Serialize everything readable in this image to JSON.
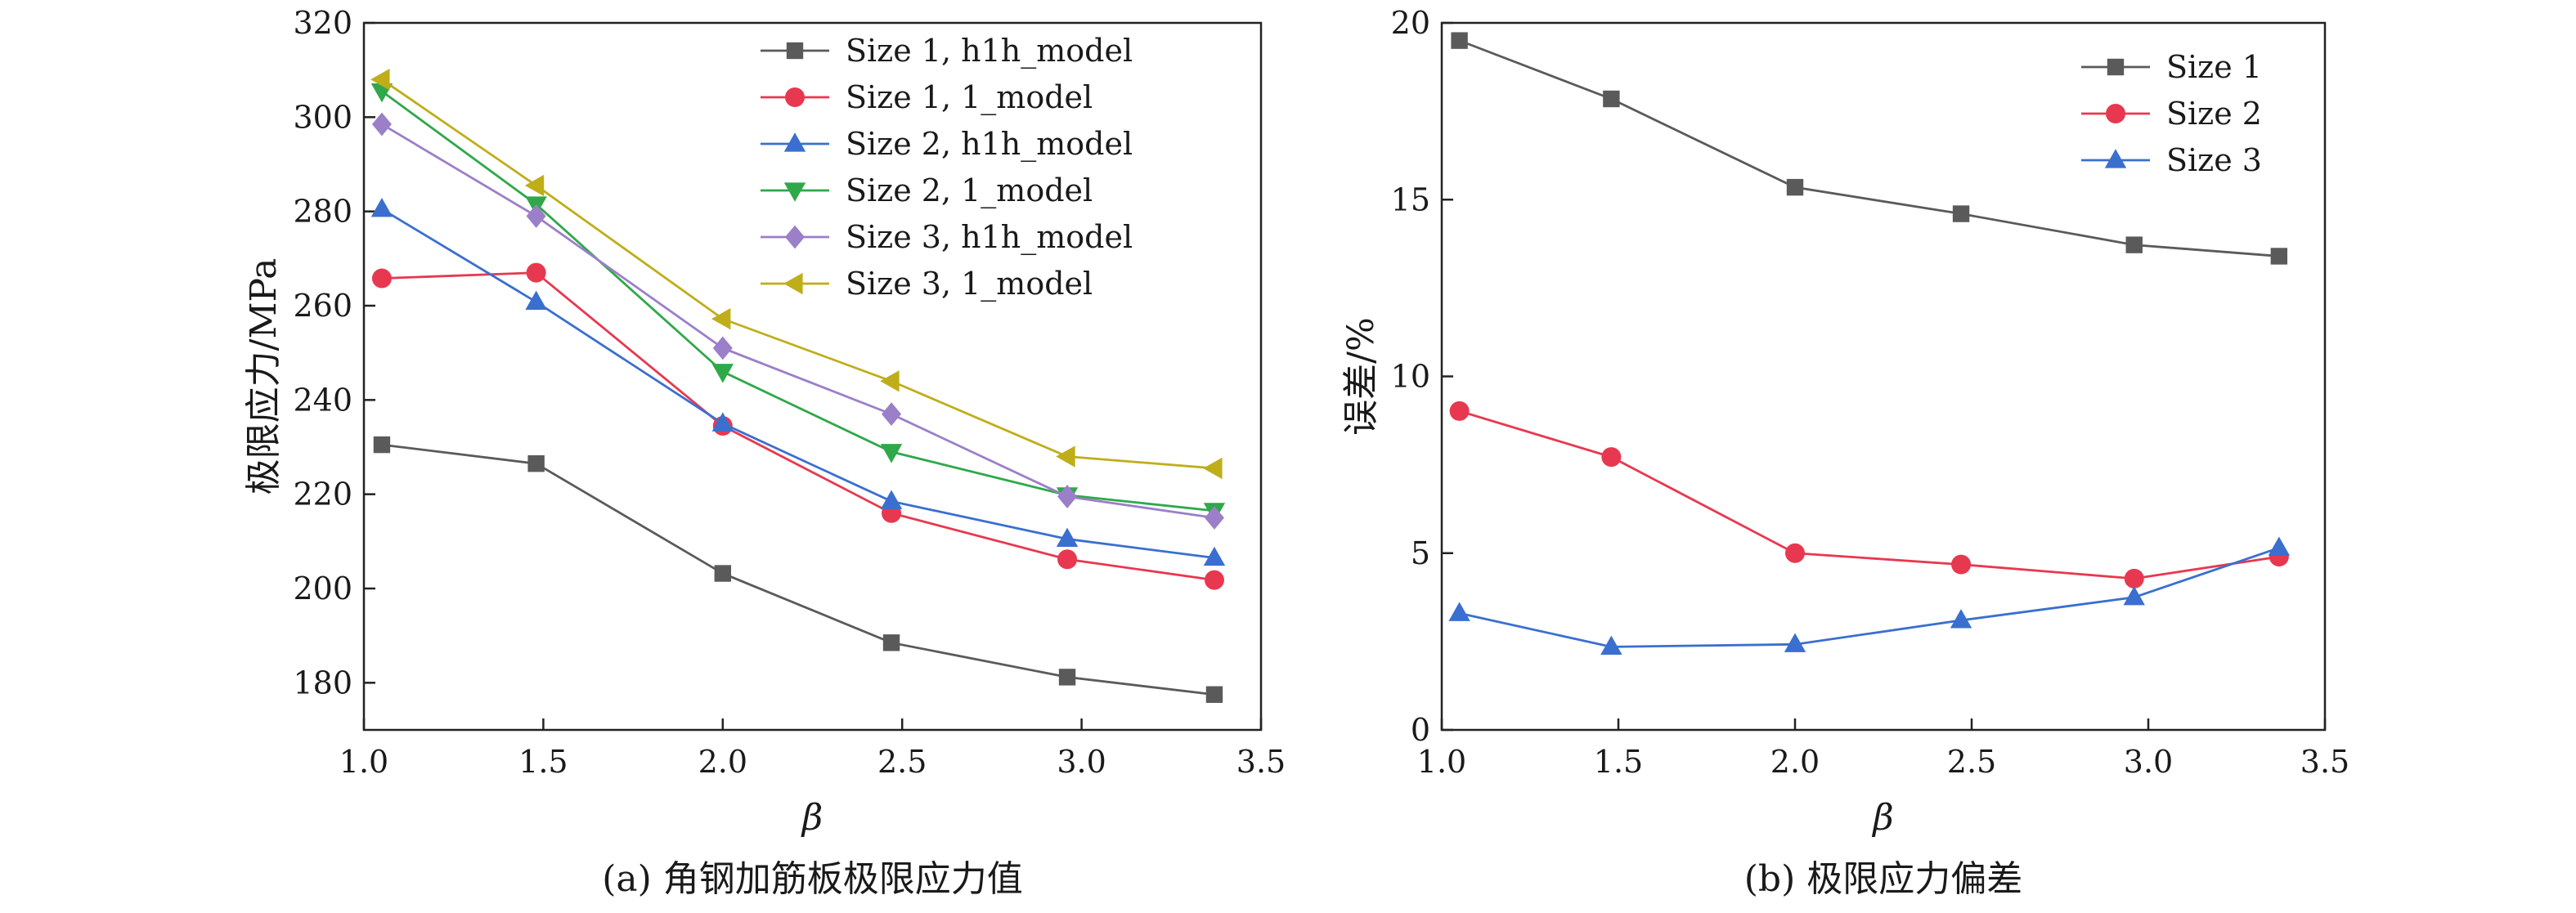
{
  "chart_data": [
    {
      "type": "line",
      "caption": "(a) 角钢加筋板极限应力值",
      "xlabel": "β",
      "ylabel": "极限应力/MPa",
      "xlim": [
        1.0,
        3.5
      ],
      "ylim": [
        170,
        320
      ],
      "xticks": [
        "1.0",
        "1.5",
        "2.0",
        "2.5",
        "3.0",
        "3.5"
      ],
      "yticks": [
        "180",
        "200",
        "220",
        "240",
        "260",
        "280",
        "300",
        "320"
      ],
      "legend_position": "top-right",
      "x": [
        1.05,
        1.48,
        2.0,
        2.47,
        2.96,
        3.37
      ],
      "series": [
        {
          "name": "Size 1, h1h_model",
          "color": "#5a5a5a",
          "marker": "square",
          "values": [
            230.5,
            226.5,
            203.2,
            188.5,
            181.2,
            177.5
          ]
        },
        {
          "name": "Size 1, 1_model",
          "color": "#e8384f",
          "marker": "circle",
          "values": [
            265.8,
            267.0,
            234.5,
            216.0,
            206.2,
            201.8
          ]
        },
        {
          "name": "Size 2, h1h_model",
          "color": "#3a6fd0",
          "marker": "triangle-up",
          "values": [
            280.5,
            260.8,
            235.0,
            218.5,
            210.5,
            206.5
          ]
        },
        {
          "name": "Size 2, 1_model",
          "color": "#2fa84a",
          "marker": "triangle-down",
          "values": [
            305.5,
            281.5,
            246.0,
            229.0,
            219.8,
            216.5
          ]
        },
        {
          "name": "Size 3, h1h_model",
          "color": "#9b7fc9",
          "marker": "diamond",
          "values": [
            298.5,
            279.0,
            251.0,
            237.0,
            219.5,
            215.0
          ]
        },
        {
          "name": "Size 3, 1_model",
          "color": "#bfae1a",
          "marker": "triangle-left",
          "values": [
            308.0,
            285.5,
            257.2,
            244.0,
            228.0,
            225.5
          ]
        }
      ]
    },
    {
      "type": "line",
      "caption": "(b) 极限应力偏差",
      "xlabel": "β",
      "ylabel": "误差/%",
      "xlim": [
        1.0,
        3.5
      ],
      "ylim": [
        0,
        20
      ],
      "xticks": [
        "1.0",
        "1.5",
        "2.0",
        "2.5",
        "3.0",
        "3.5"
      ],
      "yticks": [
        "0",
        "5",
        "10",
        "15",
        "20"
      ],
      "legend_position": "top-right",
      "x": [
        1.05,
        1.48,
        2.0,
        2.47,
        2.96,
        3.37
      ],
      "series": [
        {
          "name": "Size 1",
          "color": "#5a5a5a",
          "marker": "square",
          "values": [
            19.5,
            17.85,
            15.35,
            14.6,
            13.72,
            13.4
          ]
        },
        {
          "name": "Size 2",
          "color": "#e8384f",
          "marker": "circle",
          "values": [
            9.02,
            7.72,
            5.0,
            4.68,
            4.28,
            4.9
          ]
        },
        {
          "name": "Size 3",
          "color": "#3a6fd0",
          "marker": "triangle-up",
          "values": [
            3.3,
            2.35,
            2.42,
            3.1,
            3.75,
            5.15
          ]
        }
      ]
    }
  ]
}
